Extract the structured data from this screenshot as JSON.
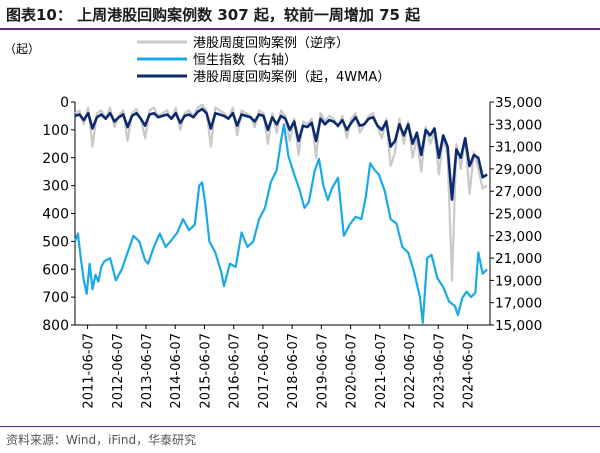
{
  "figure_title": "图表10：  上周港股回购案例数 307 起，较前一周增加 75 起",
  "source": "资料来源：Wind，iFind，华泰研究",
  "chart_data": {
    "type": "line",
    "left_axis_unit": "（起）",
    "yleft_lim": [
      0,
      800
    ],
    "yleft_inverted": true,
    "yleft_ticks": [
      0,
      100,
      200,
      300,
      400,
      500,
      600,
      700,
      800
    ],
    "yright_lim": [
      15000,
      35000
    ],
    "yright_ticks": [
      15000,
      17000,
      19000,
      21000,
      23000,
      25000,
      27000,
      29000,
      31000,
      33000,
      35000
    ],
    "yright_tick_labels": [
      "15,000",
      "17,000",
      "19,000",
      "21,000",
      "23,000",
      "25,000",
      "27,000",
      "29,000",
      "31,000",
      "33,000",
      "35,000"
    ],
    "x_tick_labels": [
      "2011-06-07",
      "2012-06-07",
      "2013-06-07",
      "2014-06-07",
      "2015-06-07",
      "2016-06-07",
      "2017-06-07",
      "2018-06-07",
      "2019-06-07",
      "2020-06-07",
      "2021-06-07",
      "2022-06-07",
      "2023-06-07",
      "2024-06-07"
    ],
    "x_range": [
      2011.0,
      2025.2
    ],
    "legend_position": "top-center",
    "colors": {
      "buyback_weekly": "#c9c9c9",
      "hsi": "#19a9e6",
      "buyback_4wma": "#0d2a6e"
    },
    "series": [
      {
        "name": "港股周度回购案例（逆序）",
        "axis": "left",
        "x": [
          2011.0,
          2011.15,
          2011.3,
          2011.45,
          2011.6,
          2011.75,
          2011.9,
          2012.05,
          2012.2,
          2012.35,
          2012.5,
          2012.65,
          2012.8,
          2012.95,
          2013.1,
          2013.25,
          2013.4,
          2013.55,
          2013.7,
          2013.85,
          2014.0,
          2014.15,
          2014.3,
          2014.45,
          2014.6,
          2014.75,
          2014.9,
          2015.05,
          2015.2,
          2015.35,
          2015.5,
          2015.65,
          2015.8,
          2015.95,
          2016.1,
          2016.25,
          2016.4,
          2016.55,
          2016.7,
          2016.85,
          2017.0,
          2017.15,
          2017.3,
          2017.45,
          2017.6,
          2017.75,
          2017.9,
          2018.05,
          2018.2,
          2018.35,
          2018.5,
          2018.65,
          2018.8,
          2018.95,
          2019.1,
          2019.25,
          2019.4,
          2019.55,
          2019.7,
          2019.85,
          2020.0,
          2020.15,
          2020.3,
          2020.45,
          2020.6,
          2020.75,
          2020.9,
          2021.05,
          2021.2,
          2021.35,
          2021.5,
          2021.65,
          2021.8,
          2021.95,
          2022.1,
          2022.25,
          2022.4,
          2022.55,
          2022.7,
          2022.85,
          2023.0,
          2023.15,
          2023.3,
          2023.45,
          2023.6,
          2023.75,
          2023.9,
          2024.05,
          2024.2,
          2024.35,
          2024.5,
          2024.65,
          2024.8,
          2024.95,
          2025.1
        ],
        "values": [
          40,
          30,
          80,
          20,
          160,
          40,
          30,
          60,
          20,
          90,
          50,
          30,
          140,
          40,
          25,
          60,
          130,
          30,
          20,
          50,
          40,
          30,
          60,
          20,
          100,
          40,
          30,
          50,
          20,
          10,
          30,
          160,
          20,
          30,
          40,
          60,
          20,
          120,
          30,
          40,
          50,
          90,
          30,
          40,
          150,
          40,
          110,
          30,
          50,
          140,
          60,
          190,
          70,
          80,
          60,
          200,
          40,
          70,
          50,
          60,
          90,
          50,
          130,
          60,
          40,
          110,
          80,
          50,
          40,
          90,
          130,
          60,
          230,
          180,
          60,
          150,
          70,
          200,
          130,
          250,
          90,
          150,
          110,
          260,
          130,
          190,
          640,
          150,
          240,
          130,
          330,
          180,
          240,
          310,
          300
        ]
      },
      {
        "name": "恒生指数（右轴）",
        "axis": "right",
        "x": [
          2011.0,
          2011.1,
          2011.2,
          2011.3,
          2011.4,
          2011.5,
          2011.6,
          2011.7,
          2011.8,
          2011.9,
          2012.0,
          2012.2,
          2012.4,
          2012.6,
          2012.8,
          2013.0,
          2013.2,
          2013.4,
          2013.5,
          2013.7,
          2013.9,
          2014.1,
          2014.3,
          2014.5,
          2014.7,
          2014.9,
          2015.1,
          2015.25,
          2015.35,
          2015.45,
          2015.6,
          2015.8,
          2016.0,
          2016.1,
          2016.3,
          2016.5,
          2016.7,
          2016.9,
          2017.1,
          2017.3,
          2017.5,
          2017.7,
          2017.9,
          2018.05,
          2018.15,
          2018.3,
          2018.5,
          2018.7,
          2018.85,
          2019.0,
          2019.2,
          2019.35,
          2019.5,
          2019.65,
          2019.8,
          2020.0,
          2020.2,
          2020.4,
          2020.6,
          2020.8,
          2020.95,
          2021.1,
          2021.25,
          2021.4,
          2021.6,
          2021.8,
          2022.0,
          2022.2,
          2022.4,
          2022.6,
          2022.8,
          2022.9,
          2023.05,
          2023.2,
          2023.4,
          2023.6,
          2023.8,
          2024.0,
          2024.1,
          2024.25,
          2024.4,
          2024.55,
          2024.7,
          2024.8,
          2024.95,
          2025.1
        ],
        "values": [
          22500,
          23200,
          21000,
          19000,
          17800,
          20500,
          18200,
          19500,
          18900,
          20200,
          20700,
          21000,
          19000,
          20000,
          21500,
          23000,
          22500,
          20800,
          20500,
          22000,
          23200,
          22000,
          22600,
          23300,
          24500,
          23500,
          24000,
          27500,
          27800,
          26000,
          22500,
          21500,
          19800,
          18500,
          20500,
          20200,
          23300,
          22000,
          22500,
          24500,
          25500,
          27800,
          28900,
          31500,
          33000,
          30200,
          28500,
          27000,
          25500,
          26000,
          28800,
          29900,
          27500,
          26200,
          27300,
          28200,
          23000,
          24000,
          24700,
          24500,
          26500,
          29500,
          28900,
          28500,
          27000,
          24500,
          24100,
          22000,
          21500,
          19800,
          17500,
          15200,
          21000,
          21300,
          19200,
          18400,
          17100,
          16700,
          15900,
          17400,
          18000,
          17500,
          17900,
          21500,
          19600,
          20000
        ]
      },
      {
        "name": "港股周度回购案例（起，4WMA）",
        "axis": "left",
        "x": [
          2011.0,
          2011.15,
          2011.3,
          2011.45,
          2011.6,
          2011.75,
          2011.9,
          2012.05,
          2012.2,
          2012.35,
          2012.5,
          2012.65,
          2012.8,
          2012.95,
          2013.1,
          2013.25,
          2013.4,
          2013.55,
          2013.7,
          2013.85,
          2014.0,
          2014.15,
          2014.3,
          2014.45,
          2014.6,
          2014.75,
          2014.9,
          2015.05,
          2015.2,
          2015.35,
          2015.5,
          2015.65,
          2015.8,
          2015.95,
          2016.1,
          2016.25,
          2016.4,
          2016.55,
          2016.7,
          2016.85,
          2017.0,
          2017.15,
          2017.3,
          2017.45,
          2017.6,
          2017.75,
          2017.9,
          2018.05,
          2018.2,
          2018.35,
          2018.5,
          2018.65,
          2018.8,
          2018.95,
          2019.1,
          2019.25,
          2019.4,
          2019.55,
          2019.7,
          2019.85,
          2020.0,
          2020.15,
          2020.3,
          2020.45,
          2020.6,
          2020.75,
          2020.9,
          2021.05,
          2021.2,
          2021.35,
          2021.5,
          2021.65,
          2021.8,
          2021.95,
          2022.1,
          2022.25,
          2022.4,
          2022.55,
          2022.7,
          2022.85,
          2023.0,
          2023.15,
          2023.3,
          2023.45,
          2023.6,
          2023.75,
          2023.9,
          2024.05,
          2024.2,
          2024.35,
          2024.5,
          2024.65,
          2024.8,
          2024.95,
          2025.1
        ],
        "values": [
          50,
          45,
          65,
          40,
          95,
          55,
          45,
          60,
          40,
          70,
          55,
          45,
          90,
          50,
          40,
          60,
          85,
          45,
          40,
          55,
          50,
          45,
          60,
          40,
          75,
          50,
          45,
          55,
          35,
          25,
          40,
          95,
          40,
          45,
          50,
          60,
          40,
          85,
          45,
          50,
          55,
          70,
          45,
          50,
          100,
          55,
          80,
          50,
          60,
          100,
          70,
          140,
          85,
          90,
          75,
          140,
          60,
          80,
          65,
          70,
          85,
          65,
          100,
          75,
          55,
          85,
          80,
          60,
          55,
          85,
          100,
          70,
          160,
          140,
          80,
          120,
          80,
          150,
          110,
          190,
          100,
          120,
          95,
          200,
          120,
          160,
          350,
          170,
          200,
          130,
          230,
          190,
          200,
          270,
          260
        ]
      }
    ]
  }
}
